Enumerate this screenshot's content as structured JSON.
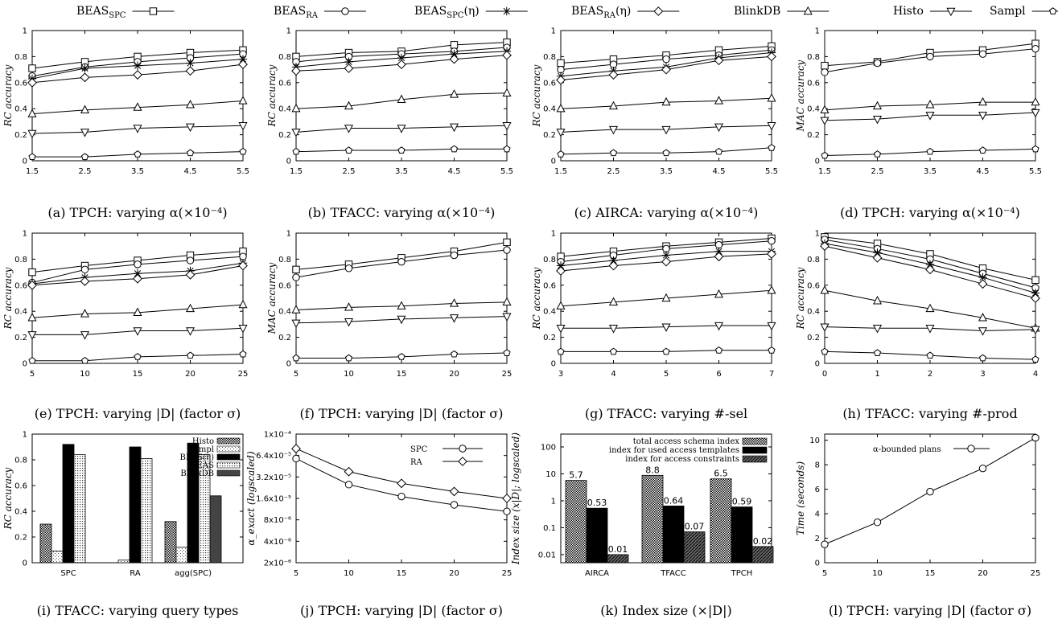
{
  "legend": [
    {
      "main": "BEAS",
      "sub": "SPC",
      "suffix": "",
      "marker": "square"
    },
    {
      "main": "BEAS",
      "sub": "RA",
      "suffix": "",
      "marker": "circle"
    },
    {
      "main": "BEAS",
      "sub": "SPC",
      "suffix": "(η)",
      "marker": "star"
    },
    {
      "main": "BEAS",
      "sub": "RA",
      "suffix": "(η)",
      "marker": "diamond"
    },
    {
      "main": "BlinkDB",
      "sub": "",
      "suffix": "",
      "marker": "triangle"
    },
    {
      "main": "Histo",
      "sub": "",
      "suffix": "",
      "marker": "triangle-down"
    },
    {
      "main": "Sampl",
      "sub": "",
      "suffix": "",
      "marker": "pentagon"
    }
  ],
  "chart_data": [
    {
      "id": "a",
      "type": "line",
      "caption": "(a) TPCH: varying α(×10⁻⁴)",
      "ylabel": "RC accuracy",
      "x": [
        1.5,
        2.5,
        3.5,
        4.5,
        5.5
      ],
      "xticks": [
        "1.5",
        "2.5",
        "3.5",
        "4.5",
        "5.5"
      ],
      "ylim": [
        0,
        1
      ],
      "yticks": [
        "0",
        "0.2",
        "0.4",
        "0.6",
        "0.8",
        "1"
      ],
      "series": [
        {
          "name": "BEAS_SPC",
          "marker": "square",
          "values": [
            0.71,
            0.76,
            0.8,
            0.83,
            0.85
          ]
        },
        {
          "name": "BEAS_RA",
          "marker": "circle",
          "values": [
            0.65,
            0.72,
            0.76,
            0.79,
            0.82
          ]
        },
        {
          "name": "BEAS_SPC(η)",
          "marker": "star",
          "values": [
            0.63,
            0.71,
            0.73,
            0.75,
            0.78
          ]
        },
        {
          "name": "BEAS_RA(η)",
          "marker": "diamond",
          "values": [
            0.6,
            0.64,
            0.66,
            0.69,
            0.74
          ]
        },
        {
          "name": "BlinkDB",
          "marker": "triangle",
          "values": [
            0.36,
            0.39,
            0.41,
            0.43,
            0.46
          ]
        },
        {
          "name": "Histo",
          "marker": "triangle-down",
          "values": [
            0.21,
            0.22,
            0.25,
            0.26,
            0.27
          ]
        },
        {
          "name": "Sampl",
          "marker": "pentagon",
          "values": [
            0.03,
            0.03,
            0.05,
            0.06,
            0.07
          ]
        }
      ]
    },
    {
      "id": "b",
      "type": "line",
      "caption": "(b) TFACC: varying α(×10⁻⁴)",
      "ylabel": "RC accuracy",
      "x": [
        1.5,
        2.5,
        3.5,
        4.5,
        5.5
      ],
      "xticks": [
        "1.5",
        "2.5",
        "3.5",
        "4.5",
        "5.5"
      ],
      "ylim": [
        0,
        1
      ],
      "yticks": [
        "0",
        "0.2",
        "0.4",
        "0.6",
        "0.8",
        "1"
      ],
      "series": [
        {
          "name": "BEAS_SPC",
          "marker": "square",
          "values": [
            0.8,
            0.83,
            0.84,
            0.89,
            0.91
          ]
        },
        {
          "name": "BEAS_RA",
          "marker": "circle",
          "values": [
            0.76,
            0.8,
            0.82,
            0.84,
            0.87
          ]
        },
        {
          "name": "BEAS_SPC(η)",
          "marker": "star",
          "values": [
            0.72,
            0.76,
            0.79,
            0.82,
            0.84
          ]
        },
        {
          "name": "BEAS_RA(η)",
          "marker": "diamond",
          "values": [
            0.69,
            0.71,
            0.74,
            0.78,
            0.81
          ]
        },
        {
          "name": "BlinkDB",
          "marker": "triangle",
          "values": [
            0.4,
            0.42,
            0.47,
            0.51,
            0.52
          ]
        },
        {
          "name": "Histo",
          "marker": "triangle-down",
          "values": [
            0.22,
            0.25,
            0.25,
            0.26,
            0.27
          ]
        },
        {
          "name": "Sampl",
          "marker": "pentagon",
          "values": [
            0.07,
            0.08,
            0.08,
            0.09,
            0.09
          ]
        }
      ]
    },
    {
      "id": "c",
      "type": "line",
      "caption": "(c) AIRCA: varying α(×10⁻⁴)",
      "ylabel": "RC accuracy",
      "x": [
        1.5,
        2.5,
        3.5,
        4.5,
        5.5
      ],
      "xticks": [
        "1.5",
        "2.5",
        "3.5",
        "4.5",
        "5.5"
      ],
      "ylim": [
        0,
        1
      ],
      "yticks": [
        "0",
        "0.2",
        "0.4",
        "0.6",
        "0.8",
        "1"
      ],
      "series": [
        {
          "name": "BEAS_SPC",
          "marker": "square",
          "values": [
            0.75,
            0.78,
            0.81,
            0.85,
            0.88
          ]
        },
        {
          "name": "BEAS_RA",
          "marker": "circle",
          "values": [
            0.7,
            0.74,
            0.78,
            0.81,
            0.85
          ]
        },
        {
          "name": "BEAS_SPC(η)",
          "marker": "star",
          "values": [
            0.65,
            0.69,
            0.72,
            0.79,
            0.83
          ]
        },
        {
          "name": "BEAS_RA(η)",
          "marker": "diamond",
          "values": [
            0.62,
            0.66,
            0.7,
            0.77,
            0.8
          ]
        },
        {
          "name": "BlinkDB",
          "marker": "triangle",
          "values": [
            0.4,
            0.42,
            0.45,
            0.46,
            0.48
          ]
        },
        {
          "name": "Histo",
          "marker": "triangle-down",
          "values": [
            0.22,
            0.24,
            0.24,
            0.26,
            0.27
          ]
        },
        {
          "name": "Sampl",
          "marker": "pentagon",
          "values": [
            0.05,
            0.06,
            0.06,
            0.07,
            0.1
          ]
        }
      ]
    },
    {
      "id": "d",
      "type": "line",
      "caption": "(d) TPCH: varying α(×10⁻⁴)",
      "ylabel": "MAC accuracy",
      "x": [
        1.5,
        2.5,
        3.5,
        4.5,
        5.5
      ],
      "xticks": [
        "1.5",
        "2.5",
        "3.5",
        "4.5",
        "5.5"
      ],
      "ylim": [
        0,
        1
      ],
      "yticks": [
        "0",
        "0.2",
        "0.4",
        "0.6",
        "0.8",
        "1"
      ],
      "series": [
        {
          "name": "BEAS_SPC",
          "marker": "square",
          "values": [
            0.73,
            0.76,
            0.83,
            0.85,
            0.9
          ]
        },
        {
          "name": "BEAS_RA",
          "marker": "circle",
          "values": [
            0.68,
            0.75,
            0.8,
            0.82,
            0.86
          ]
        },
        {
          "name": "BlinkDB",
          "marker": "triangle",
          "values": [
            0.39,
            0.42,
            0.43,
            0.45,
            0.45
          ]
        },
        {
          "name": "Histo",
          "marker": "triangle-down",
          "values": [
            0.31,
            0.32,
            0.35,
            0.35,
            0.37
          ]
        },
        {
          "name": "Sampl",
          "marker": "pentagon",
          "values": [
            0.04,
            0.05,
            0.07,
            0.08,
            0.09
          ]
        }
      ]
    },
    {
      "id": "e",
      "type": "line",
      "caption": "(e) TPCH: varying |D| (factor σ)",
      "ylabel": "RC accuracy",
      "x": [
        5,
        10,
        15,
        20,
        25
      ],
      "xticks": [
        "5",
        "10",
        "15",
        "20",
        "25"
      ],
      "ylim": [
        0,
        1
      ],
      "yticks": [
        "0",
        "0.2",
        "0.4",
        "0.6",
        "0.8",
        "1"
      ],
      "series": [
        {
          "name": "BEAS_SPC",
          "marker": "square",
          "values": [
            0.7,
            0.75,
            0.79,
            0.83,
            0.86
          ]
        },
        {
          "name": "BEAS_RA",
          "marker": "circle",
          "values": [
            0.62,
            0.72,
            0.76,
            0.79,
            0.82
          ]
        },
        {
          "name": "BEAS_SPC(η)",
          "marker": "star",
          "values": [
            0.61,
            0.66,
            0.69,
            0.71,
            0.77
          ]
        },
        {
          "name": "BEAS_RA(η)",
          "marker": "diamond",
          "values": [
            0.6,
            0.63,
            0.65,
            0.68,
            0.75
          ]
        },
        {
          "name": "BlinkDB",
          "marker": "triangle",
          "values": [
            0.35,
            0.38,
            0.39,
            0.42,
            0.45
          ]
        },
        {
          "name": "Histo",
          "marker": "triangle-down",
          "values": [
            0.22,
            0.22,
            0.25,
            0.25,
            0.27
          ]
        },
        {
          "name": "Sampl",
          "marker": "pentagon",
          "values": [
            0.02,
            0.02,
            0.05,
            0.06,
            0.07
          ]
        }
      ]
    },
    {
      "id": "f",
      "type": "line",
      "caption": "(f) TPCH: varying |D| (factor σ)",
      "ylabel": "MAC accuracy",
      "x": [
        5,
        10,
        15,
        20,
        25
      ],
      "xticks": [
        "5",
        "10",
        "15",
        "20",
        "25"
      ],
      "ylim": [
        0,
        1
      ],
      "yticks": [
        "0",
        "0.2",
        "0.4",
        "0.6",
        "0.8",
        "1"
      ],
      "series": [
        {
          "name": "BEAS_SPC",
          "marker": "square",
          "values": [
            0.72,
            0.76,
            0.81,
            0.86,
            0.93
          ]
        },
        {
          "name": "BEAS_RA",
          "marker": "circle",
          "values": [
            0.66,
            0.73,
            0.78,
            0.83,
            0.87
          ]
        },
        {
          "name": "BlinkDB",
          "marker": "triangle",
          "values": [
            0.41,
            0.43,
            0.44,
            0.46,
            0.47
          ]
        },
        {
          "name": "Histo",
          "marker": "triangle-down",
          "values": [
            0.31,
            0.32,
            0.34,
            0.35,
            0.36
          ]
        },
        {
          "name": "Sampl",
          "marker": "pentagon",
          "values": [
            0.04,
            0.04,
            0.05,
            0.07,
            0.08
          ]
        }
      ]
    },
    {
      "id": "g",
      "type": "line",
      "caption": "(g) TFACC: varying #-sel",
      "ylabel": "RC accuracy",
      "x": [
        3,
        4,
        5,
        6,
        7
      ],
      "xticks": [
        "3",
        "4",
        "5",
        "6",
        "7"
      ],
      "ylim": [
        0,
        1
      ],
      "yticks": [
        "0",
        "0.2",
        "0.4",
        "0.6",
        "0.8",
        "1"
      ],
      "series": [
        {
          "name": "BEAS_SPC",
          "marker": "square",
          "values": [
            0.82,
            0.86,
            0.9,
            0.93,
            0.96
          ]
        },
        {
          "name": "BEAS_RA",
          "marker": "circle",
          "values": [
            0.78,
            0.83,
            0.88,
            0.91,
            0.94
          ]
        },
        {
          "name": "BEAS_SPC(η)",
          "marker": "star",
          "values": [
            0.75,
            0.79,
            0.83,
            0.86,
            0.86
          ]
        },
        {
          "name": "BEAS_RA(η)",
          "marker": "diamond",
          "values": [
            0.71,
            0.75,
            0.78,
            0.82,
            0.84
          ]
        },
        {
          "name": "BlinkDB",
          "marker": "triangle",
          "values": [
            0.44,
            0.47,
            0.5,
            0.53,
            0.56
          ]
        },
        {
          "name": "Histo",
          "marker": "triangle-down",
          "values": [
            0.27,
            0.27,
            0.28,
            0.29,
            0.29
          ]
        },
        {
          "name": "Sampl",
          "marker": "pentagon",
          "values": [
            0.09,
            0.09,
            0.09,
            0.1,
            0.1
          ]
        }
      ]
    },
    {
      "id": "h",
      "type": "line",
      "caption": "(h) TFACC: varying #-prod",
      "ylabel": "RC accuracy",
      "x": [
        0,
        1,
        2,
        3,
        4
      ],
      "xticks": [
        "0",
        "1",
        "2",
        "3",
        "4"
      ],
      "ylim": [
        0,
        1
      ],
      "yticks": [
        "0",
        "0.2",
        "0.4",
        "0.6",
        "0.8",
        "1"
      ],
      "series": [
        {
          "name": "BEAS_SPC",
          "marker": "square",
          "values": [
            0.97,
            0.92,
            0.84,
            0.73,
            0.64
          ]
        },
        {
          "name": "BEAS_RA",
          "marker": "circle",
          "values": [
            0.95,
            0.88,
            0.8,
            0.69,
            0.58
          ]
        },
        {
          "name": "BEAS_SPC(η)",
          "marker": "star",
          "values": [
            0.92,
            0.85,
            0.76,
            0.66,
            0.54
          ]
        },
        {
          "name": "BEAS_RA(η)",
          "marker": "diamond",
          "values": [
            0.9,
            0.81,
            0.72,
            0.61,
            0.5
          ]
        },
        {
          "name": "BlinkDB",
          "marker": "triangle",
          "values": [
            0.56,
            0.48,
            0.42,
            0.35,
            0.27
          ]
        },
        {
          "name": "Histo",
          "marker": "triangle-down",
          "values": [
            0.28,
            0.27,
            0.27,
            0.25,
            0.26
          ]
        },
        {
          "name": "Sampl",
          "marker": "pentagon",
          "values": [
            0.09,
            0.08,
            0.06,
            0.04,
            0.03
          ]
        }
      ]
    },
    {
      "id": "i",
      "type": "bar",
      "caption": "(i) TFACC: varying query types",
      "ylabel": "RC accuracy",
      "categories": [
        "SPC",
        "RA",
        "agg(SPC)"
      ],
      "ylim": [
        0,
        1
      ],
      "yticks": [
        "0",
        "0.2",
        "0.4",
        "0.6",
        "0.8",
        "1"
      ],
      "legend": [
        "Histo",
        "sampl",
        "BEAS(η)",
        "BEAS",
        "BlinkDB"
      ],
      "series": [
        {
          "name": "Histo",
          "values": [
            0.3,
            0,
            0.32
          ]
        },
        {
          "name": "sampl",
          "values": [
            0.09,
            0.02,
            0.12
          ]
        },
        {
          "name": "BEAS(η)",
          "values": [
            0.92,
            0.9,
            0.93
          ]
        },
        {
          "name": "BEAS",
          "values": [
            0.84,
            0.81,
            0.84
          ]
        },
        {
          "name": "BlinkDB",
          "values": [
            0,
            0,
            0.52
          ]
        }
      ]
    },
    {
      "id": "j",
      "type": "line",
      "caption": "(j) TPCH: varying |D| (factor σ)",
      "ylabel": "α_exact (logscaled)",
      "x": [
        5,
        10,
        15,
        20,
        25
      ],
      "xticks": [
        "5",
        "10",
        "15",
        "20",
        "25"
      ],
      "log": true,
      "ylim": [
        2e-06,
        0.000128
      ],
      "ytick_values": [
        2e-06,
        4e-06,
        8e-06,
        1.6e-05,
        3.2e-05,
        6.4e-05
      ],
      "yticks": [
        "2x10⁻⁶",
        "4x10⁻⁶",
        "8x10⁻⁶",
        "1.6x10⁻⁵",
        "3.2x10⁻⁵",
        "6.4x10⁻⁵"
      ],
      "ytop_label": "1x10⁻⁴",
      "series": [
        {
          "name": "SPC",
          "marker": "circle",
          "values": [
            5.8e-05,
            2.5e-05,
            1.7e-05,
            1.3e-05,
            1.05e-05
          ]
        },
        {
          "name": "RA",
          "marker": "diamond",
          "values": [
            8e-05,
            3.8e-05,
            2.6e-05,
            2e-05,
            1.6e-05
          ]
        }
      ]
    },
    {
      "id": "k",
      "type": "bar",
      "caption": "(k) Index size (×|D|)",
      "ylabel": "Index size (x|D|; logscaled)",
      "categories": [
        "AIRCA",
        "TFACC",
        "TPCH"
      ],
      "log": true,
      "ylim": [
        0.005,
        300
      ],
      "ytick_values": [
        0.01,
        0.1,
        1,
        10,
        100
      ],
      "yticks": [
        "0.01",
        "0.1",
        "1",
        "10",
        "100"
      ],
      "legend": [
        "total access schema index",
        "index for used access templates",
        "index for access constraints"
      ],
      "series": [
        {
          "name": "total access schema index",
          "values": [
            5.7,
            8.8,
            6.5
          ],
          "labels": [
            "5.7",
            "8.8",
            "6.5"
          ]
        },
        {
          "name": "index for used access templates",
          "values": [
            0.53,
            0.64,
            0.59
          ],
          "labels": [
            "0.53",
            "0.64",
            "0.59"
          ]
        },
        {
          "name": "index for access constraints",
          "values": [
            0.01,
            0.07,
            0.02
          ],
          "labels": [
            "0.01",
            "0.07",
            "0.02"
          ]
        }
      ]
    },
    {
      "id": "l",
      "type": "line",
      "caption": "(l) TPCH: varying |D| (factor σ)",
      "ylabel": "Time (seconds)",
      "x": [
        5,
        10,
        15,
        20,
        25
      ],
      "xticks": [
        "5",
        "10",
        "15",
        "20",
        "25"
      ],
      "ylim": [
        0,
        10.5
      ],
      "ytick_values": [
        0,
        2,
        4,
        6,
        8,
        10
      ],
      "yticks": [
        "0",
        "2",
        "4",
        "6",
        "8",
        "10"
      ],
      "series": [
        {
          "name": "α-bounded plans",
          "marker": "circle",
          "values": [
            1.5,
            3.3,
            5.8,
            7.7,
            10.2
          ]
        }
      ]
    }
  ]
}
